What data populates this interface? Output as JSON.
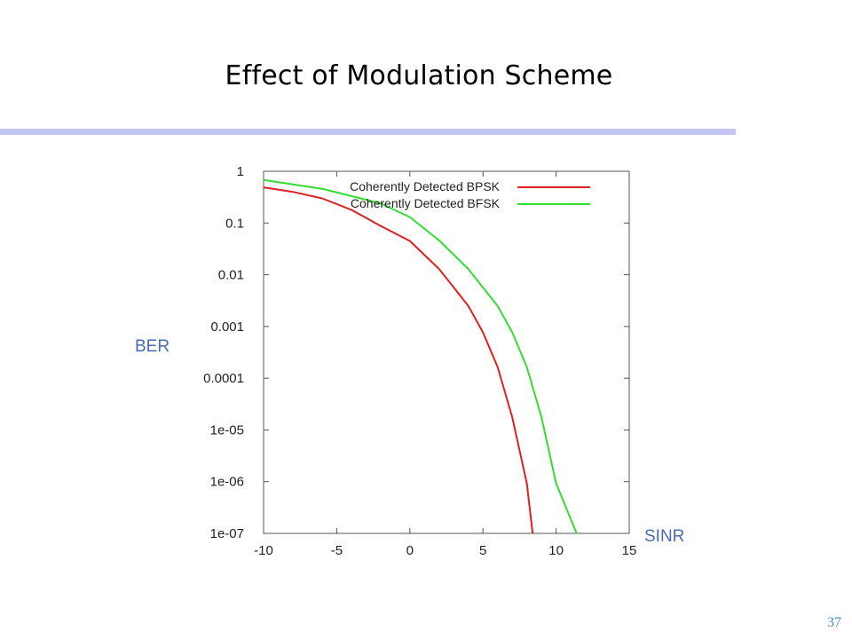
{
  "slide": {
    "title": "Effect of Modulation Scheme",
    "page_number": "37"
  },
  "colors": {
    "bpsk": "#e02020",
    "bfsk": "#33dd33",
    "axis_caption": "#4a6bb8",
    "title_rule": "#c5c5f3"
  },
  "chart_data": {
    "type": "line",
    "title": "",
    "xlabel": "SINR",
    "ylabel": "BER",
    "x_scale": "linear",
    "y_scale": "log",
    "xlim": [
      -10,
      15
    ],
    "ylim": [
      1e-07,
      1
    ],
    "x_ticks": [
      -10,
      -5,
      0,
      5,
      10,
      15
    ],
    "x_tick_labels": [
      "-10",
      "-5",
      "0",
      "5",
      "10",
      "15"
    ],
    "y_ticks": [
      1e-07,
      1e-06,
      1e-05,
      0.0001,
      0.001,
      0.01,
      0.1,
      1
    ],
    "y_tick_labels": [
      "1e-07",
      "1e-06",
      "1e-05",
      "0.0001",
      "0.001",
      "0.01",
      "0.1",
      "1"
    ],
    "grid": false,
    "legend_position": "top-right",
    "series": [
      {
        "name": "Coherently Detected BPSK",
        "color": "#e02020",
        "points": [
          [
            -10,
            0.49
          ],
          [
            -8,
            0.4
          ],
          [
            -6,
            0.3
          ],
          [
            -4,
            0.18
          ],
          [
            -2,
            0.088
          ],
          [
            0,
            0.045
          ],
          [
            2,
            0.0129
          ],
          [
            4,
            0.0025
          ],
          [
            5,
            0.00077
          ],
          [
            6,
            0.000165
          ],
          [
            7,
            1.76e-05
          ],
          [
            8,
            9.3e-07
          ],
          [
            8.4,
            1e-07
          ]
        ]
      },
      {
        "name": "Coherently Detected BFSK",
        "color": "#33dd33",
        "points": [
          [
            -10,
            0.68
          ],
          [
            -6,
            0.46
          ],
          [
            -2,
            0.24
          ],
          [
            0,
            0.13
          ],
          [
            2,
            0.046
          ],
          [
            4,
            0.0129
          ],
          [
            6,
            0.0025
          ],
          [
            7,
            0.00077
          ],
          [
            8,
            0.000165
          ],
          [
            9,
            1.76e-05
          ],
          [
            10,
            9.3e-07
          ],
          [
            11.4,
            1e-07
          ]
        ]
      }
    ]
  }
}
